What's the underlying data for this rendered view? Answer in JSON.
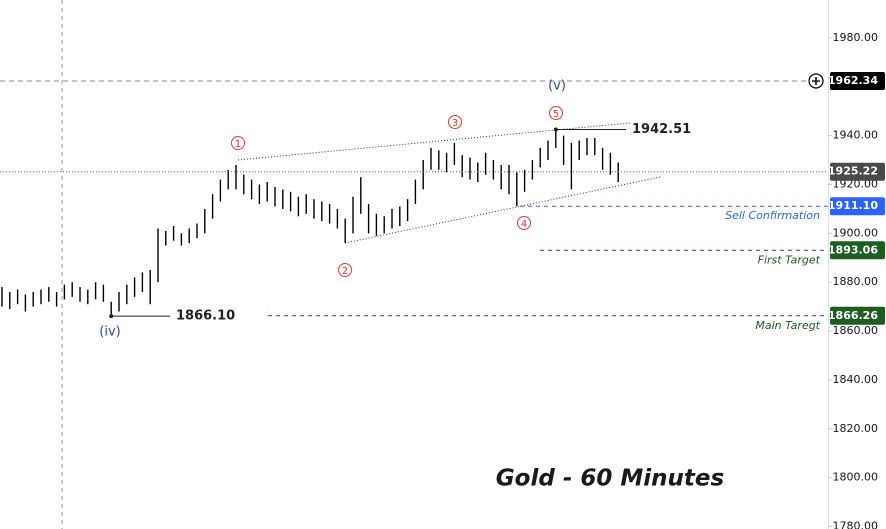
{
  "chart_data": {
    "type": "ohlc",
    "title": "Gold - 60 Minutes",
    "ylim": [
      1779,
      1995.5
    ],
    "yticks": [
      {
        "value": 1780,
        "label": "1780.00"
      },
      {
        "value": 1800,
        "label": "1800.00"
      },
      {
        "value": 1820,
        "label": "1820.00"
      },
      {
        "value": 1840,
        "label": "1840.00"
      },
      {
        "value": 1860,
        "label": "1860.00"
      },
      {
        "value": 1880,
        "label": "1880.00"
      },
      {
        "value": 1900,
        "label": "1900.00"
      },
      {
        "value": 1920,
        "label": "1920.00"
      },
      {
        "value": 1940,
        "label": "1940.00"
      },
      {
        "value": 1980,
        "label": "1980.00"
      }
    ],
    "color": "#000000",
    "high": [
      1878,
      1876,
      1877,
      1875,
      1876,
      1877,
      1878,
      1876,
      1879,
      1880,
      1878,
      1877,
      1880,
      1879,
      1872,
      1876,
      1879,
      1882,
      1884,
      1885,
      1902,
      1901,
      1903,
      1900,
      1902,
      1904,
      1910,
      1916,
      1922,
      1926,
      1928,
      1924,
      1922,
      1920,
      1921,
      1919,
      1918,
      1917,
      1915,
      1916,
      1914,
      1913,
      1912,
      1910,
      1906,
      1915,
      1923,
      1912,
      1908,
      1907,
      1910,
      1911,
      1914,
      1922,
      1930,
      1935,
      1934,
      1933,
      1937,
      1932,
      1931,
      1929,
      1933,
      1930,
      1928,
      1928,
      1925,
      1926,
      1930,
      1935,
      1938,
      1942.51,
      1940,
      1937,
      1938,
      1939,
      1939,
      1935,
      1933,
      1929
    ],
    "low": [
      1870,
      1869,
      1871,
      1868,
      1870,
      1871,
      1872,
      1870,
      1873,
      1874,
      1872,
      1871,
      1873,
      1872,
      1866.1,
      1868,
      1871,
      1874,
      1876,
      1871,
      1880,
      1895,
      1897,
      1895,
      1896,
      1898,
      1900,
      1906,
      1913,
      1918,
      1918,
      1916,
      1914,
      1912,
      1913,
      1911,
      1910,
      1909,
      1907,
      1908,
      1906,
      1905,
      1904,
      1902,
      1896,
      1900,
      1908,
      1900,
      1899,
      1900,
      1902,
      1903,
      1905,
      1912,
      1918,
      1926,
      1926,
      1925,
      1928,
      1923,
      1922,
      1921,
      1924,
      1922,
      1918,
      1916,
      1911.1,
      1917,
      1922,
      1927,
      1930,
      1935,
      1928,
      1918,
      1930,
      1932,
      1932,
      1926,
      1924,
      1921
    ],
    "levels": [
      {
        "value": 1962.34,
        "label": "1962.34",
        "color": "#000000"
      },
      {
        "value": 1925.22,
        "label": "1925.22",
        "color": "#4a4a4a"
      },
      {
        "value": 1911.1,
        "label": "1911.10",
        "text": "Sell Confirmation",
        "color": "#2962ff"
      },
      {
        "value": 1893.06,
        "label": "1893.06",
        "text": "First Target",
        "color": "#1b5e20"
      },
      {
        "value": 1866.26,
        "label": "1866.26",
        "text": "Main Taregt",
        "color": "#1b5e20"
      }
    ],
    "annotations": [
      {
        "value": 1866.1,
        "label": "1866.10"
      },
      {
        "value": 1942.51,
        "label": "1942.51"
      }
    ],
    "waves": [
      "1",
      "2",
      "3",
      "4",
      "5"
    ],
    "degree_waves": [
      "(iv)",
      "(v)"
    ]
  }
}
